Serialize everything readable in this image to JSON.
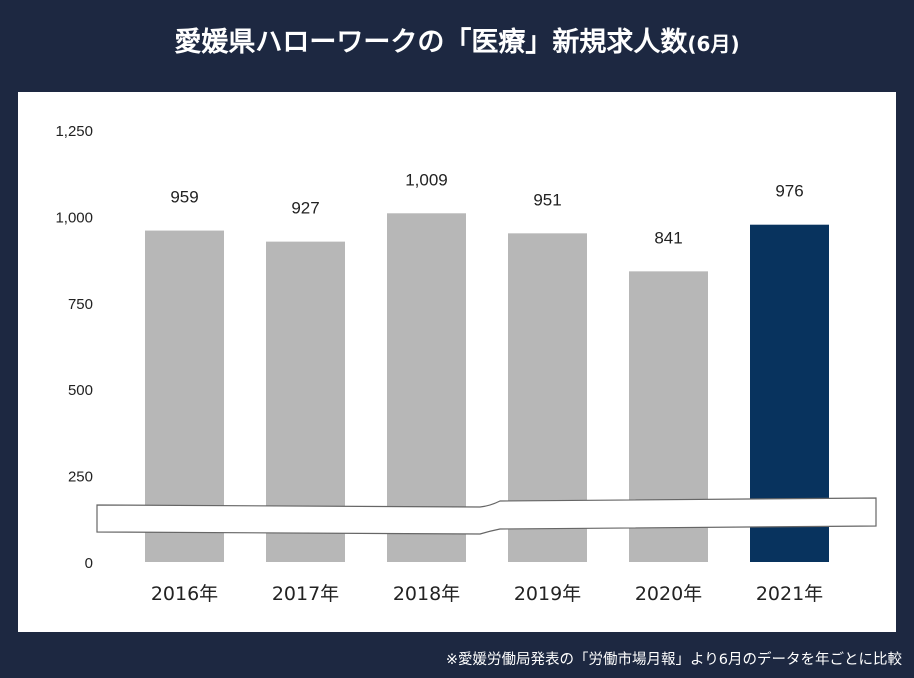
{
  "title": {
    "main": "愛媛県ハローワークの「医療」新規求人数",
    "suffix": "(6月)"
  },
  "footnote": "※愛媛労働局発表の「労働市場月報」より6月のデータを年ごとに比較",
  "colors": {
    "background": "#1d2841",
    "bar": "#b7b7b7",
    "highlight_bar": "#08335e"
  },
  "chart_data": {
    "type": "bar",
    "categories": [
      "2016年",
      "2017年",
      "2018年",
      "2019年",
      "2020年",
      "2021年"
    ],
    "values": [
      959,
      927,
      1009,
      951,
      841,
      976
    ],
    "value_labels": [
      "959",
      "927",
      "1,009",
      "951",
      "841",
      "976"
    ],
    "highlight_index": 5,
    "ylim": [
      0,
      1250
    ],
    "yticks": [
      0,
      250,
      500,
      750,
      1000,
      1250
    ],
    "ytick_labels": [
      "0",
      "250",
      "500",
      "750",
      "1,000",
      "1,250"
    ],
    "axis_break": true,
    "grid": false
  }
}
